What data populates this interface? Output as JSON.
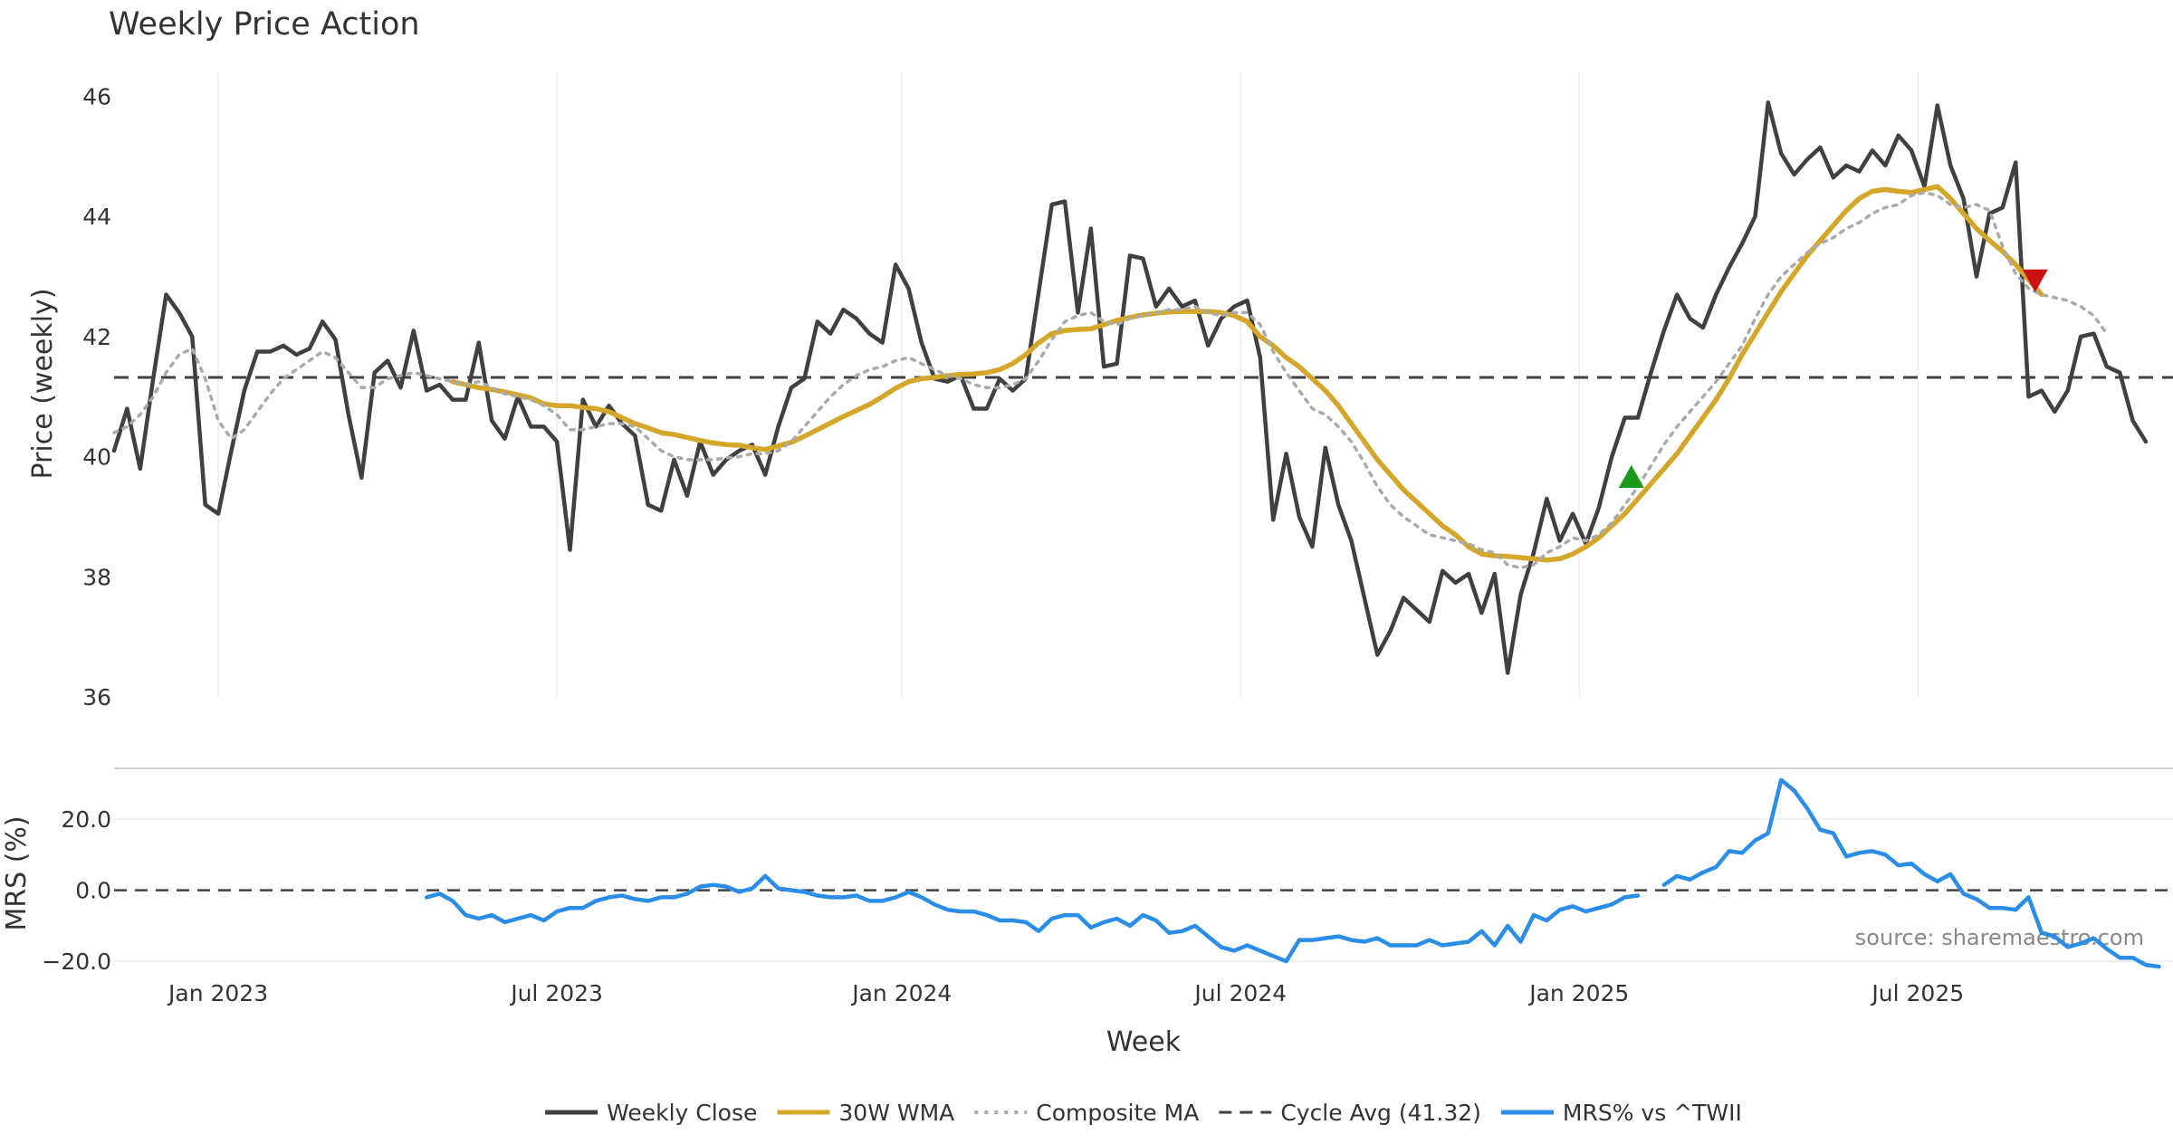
{
  "chart_data": {
    "type": "line",
    "title": "Weekly Price Action",
    "xlabel": "Week",
    "x_ticks": [
      {
        "label": "Jan 2023",
        "week": 8
      },
      {
        "label": "Jul 2023",
        "week": 34
      },
      {
        "label": "Jan 2024",
        "week": 60.5
      },
      {
        "label": "Jul 2024",
        "week": 86.5
      },
      {
        "label": "Jan 2025",
        "week": 112.5
      },
      {
        "label": "Jul 2025",
        "week": 138.5
      }
    ],
    "x_range": [
      0,
      156
    ],
    "source": "source: sharemaestro.com",
    "legend": [
      {
        "key": "close",
        "label": "Weekly Close",
        "style": "solid",
        "color": "#404040"
      },
      {
        "key": "wma",
        "label": "30W WMA",
        "style": "solid",
        "color": "#d4a62a"
      },
      {
        "key": "composite",
        "label": "Composite MA",
        "style": "dotted",
        "color": "#aaaaaa"
      },
      {
        "key": "cycle",
        "label": "Cycle Avg (41.32)",
        "style": "dashed",
        "color": "#404040"
      },
      {
        "key": "mrs",
        "label": "MRS% vs ^TWII",
        "style": "solid",
        "color": "#2a8ee8"
      }
    ],
    "price_panel": {
      "ylabel": "Price (weekly)",
      "ylim": [
        36,
        46.4
      ],
      "yticks": [
        36,
        38,
        40,
        42,
        44,
        46
      ],
      "cycle_avg": 41.32,
      "series": [
        {
          "name": "Weekly Close",
          "start_week": 0,
          "values": [
            40.1,
            40.8,
            39.8,
            41.3,
            42.7,
            42.4,
            42.0,
            39.2,
            39.05,
            40.1,
            41.1,
            41.75,
            41.75,
            41.85,
            41.7,
            41.8,
            42.25,
            41.95,
            40.7,
            39.65,
            41.4,
            41.6,
            41.15,
            42.1,
            41.1,
            41.2,
            40.95,
            40.95,
            41.9,
            40.6,
            40.3,
            41.0,
            40.5,
            40.5,
            40.25,
            38.45,
            40.95,
            40.5,
            40.85,
            40.55,
            40.35,
            39.2,
            39.1,
            39.95,
            39.35,
            40.25,
            39.7,
            39.95,
            40.1,
            40.2,
            39.7,
            40.5,
            41.15,
            41.3,
            42.25,
            42.05,
            42.45,
            42.3,
            42.05,
            41.9,
            43.2,
            42.8,
            41.9,
            41.3,
            41.25,
            41.35,
            40.8,
            40.8,
            41.3,
            41.1,
            41.3,
            42.75,
            44.2,
            44.25,
            42.4,
            43.8,
            41.5,
            41.55,
            43.35,
            43.3,
            42.5,
            42.8,
            42.5,
            42.6,
            41.85,
            42.3,
            42.5,
            42.6,
            41.65,
            38.95,
            40.05,
            39.0,
            38.5,
            40.15,
            39.2,
            38.6,
            37.65,
            36.7,
            37.1,
            37.65,
            37.45,
            37.25,
            38.1,
            37.9,
            38.05,
            37.4,
            38.05,
            36.4,
            37.7,
            38.4,
            39.3,
            38.6,
            39.05,
            38.55,
            39.15,
            40.0,
            40.65,
            40.65,
            41.4,
            42.1,
            42.7,
            42.3,
            42.15,
            42.7,
            43.15,
            43.55,
            44.0,
            45.9,
            45.05,
            44.7,
            44.95,
            45.15,
            44.65,
            44.85,
            44.75,
            45.1,
            44.85,
            45.35,
            45.1,
            44.5,
            45.85,
            44.85,
            44.3,
            43.0,
            44.05,
            44.15,
            44.9,
            41.0,
            41.1,
            40.75,
            41.1,
            42.0,
            42.05,
            41.5,
            41.4,
            40.6,
            40.25
          ]
        },
        {
          "name": "30W WMA",
          "start_week": 26,
          "values": [
            41.25,
            41.2,
            41.15,
            41.12,
            41.08,
            41.03,
            40.98,
            40.88,
            40.85,
            40.85,
            40.82,
            40.8,
            40.75,
            40.65,
            40.55,
            40.48,
            40.4,
            40.37,
            40.32,
            40.27,
            40.23,
            40.2,
            40.19,
            40.15,
            40.12,
            40.18,
            40.24,
            40.34,
            40.45,
            40.56,
            40.67,
            40.77,
            40.87,
            41.0,
            41.14,
            41.25,
            41.3,
            41.32,
            41.35,
            41.37,
            41.38,
            41.4,
            41.45,
            41.55,
            41.7,
            41.9,
            42.05,
            42.1,
            42.12,
            42.13,
            42.2,
            42.27,
            42.32,
            42.36,
            42.39,
            42.41,
            42.42,
            42.42,
            42.42,
            42.4,
            42.35,
            42.25,
            42.0,
            41.85,
            41.65,
            41.5,
            41.3,
            41.1,
            40.85,
            40.55,
            40.25,
            39.95,
            39.7,
            39.45,
            39.25,
            39.05,
            38.85,
            38.7,
            38.5,
            38.38,
            38.35,
            38.34,
            38.32,
            38.3,
            38.28,
            38.3,
            38.38,
            38.5,
            38.65,
            38.85,
            39.05,
            39.3,
            39.55,
            39.8,
            40.05,
            40.35,
            40.65,
            40.95,
            41.3,
            41.7,
            42.05,
            42.4,
            42.75,
            43.05,
            43.35,
            43.6,
            43.85,
            44.1,
            44.3,
            44.42,
            44.45,
            44.42,
            44.4,
            44.45,
            44.5,
            44.3,
            44.05,
            43.8,
            43.6,
            43.42,
            43.2,
            42.95,
            42.7
          ]
        },
        {
          "name": "Composite MA",
          "start_week": 0,
          "values": [
            40.4,
            40.5,
            40.7,
            41.0,
            41.4,
            41.7,
            41.8,
            41.3,
            40.6,
            40.3,
            40.45,
            40.75,
            41.05,
            41.3,
            41.45,
            41.6,
            41.75,
            41.65,
            41.4,
            41.15,
            41.15,
            41.3,
            41.35,
            41.4,
            41.35,
            41.3,
            41.25,
            41.2,
            41.25,
            41.15,
            41.05,
            41.0,
            40.95,
            40.85,
            40.7,
            40.45,
            40.45,
            40.5,
            40.55,
            40.55,
            40.5,
            40.3,
            40.1,
            40.0,
            39.95,
            39.95,
            39.95,
            39.98,
            40.0,
            40.05,
            40.05,
            40.1,
            40.25,
            40.5,
            40.75,
            41.0,
            41.2,
            41.35,
            41.45,
            41.5,
            41.6,
            41.65,
            41.55,
            41.45,
            41.35,
            41.3,
            41.2,
            41.15,
            41.15,
            41.2,
            41.3,
            41.6,
            41.95,
            42.25,
            42.35,
            42.4,
            42.25,
            42.2,
            42.3,
            42.35,
            42.4,
            42.45,
            42.45,
            42.5,
            42.4,
            42.35,
            42.4,
            42.4,
            42.2,
            41.75,
            41.4,
            41.1,
            40.8,
            40.7,
            40.5,
            40.25,
            39.9,
            39.5,
            39.2,
            39.0,
            38.85,
            38.7,
            38.65,
            38.6,
            38.55,
            38.45,
            38.4,
            38.2,
            38.15,
            38.2,
            38.4,
            38.5,
            38.65,
            38.6,
            38.7,
            38.9,
            39.2,
            39.5,
            39.85,
            40.2,
            40.5,
            40.75,
            41.0,
            41.25,
            41.55,
            41.85,
            42.3,
            42.7,
            43.0,
            43.2,
            43.4,
            43.55,
            43.65,
            43.8,
            43.9,
            44.05,
            44.15,
            44.2,
            44.35,
            44.4,
            44.35,
            44.2,
            44.15,
            44.2,
            44.1,
            43.5,
            43.05,
            42.8,
            42.7,
            42.65,
            42.6,
            42.5,
            42.35,
            42.05
          ]
        }
      ],
      "markers": [
        {
          "type": "buy",
          "shape": "triangle-up",
          "week": 116.5,
          "price": 39.65,
          "color": "#1a9a1a"
        },
        {
          "type": "sell",
          "shape": "triangle-down",
          "week": 147.5,
          "price": 42.95,
          "color": "#cc1111"
        }
      ]
    },
    "mrs_panel": {
      "ylabel": "MRS (%)",
      "ylim": [
        -22,
        34
      ],
      "yticks": [
        -20,
        0,
        20
      ],
      "ytick_labels": [
        "−20.0",
        "0.0",
        "20.0"
      ],
      "zero_line": 0,
      "series": [
        {
          "name": "MRS% vs ^TWII",
          "start_week": 24,
          "values": [
            -2,
            -1,
            -3,
            -7,
            -8,
            -7,
            -9,
            -8,
            -7,
            -8.5,
            -6,
            -5,
            -5,
            -3,
            -2,
            -1.5,
            -2.5,
            -3,
            -2,
            -2,
            -1,
            1,
            1.5,
            1,
            -0.5,
            0.5,
            4,
            0.5,
            0,
            -0.5,
            -1.5,
            -2,
            -2,
            -1.5,
            -3,
            -3,
            -2,
            -0.5,
            -2,
            -4,
            -5.5,
            -6,
            -6,
            -7,
            -8.5,
            -8.5,
            -9,
            -11.5,
            -8,
            -7,
            -7,
            -10.5,
            -9,
            -8,
            -10,
            -7,
            -8.5,
            -12,
            -11.5,
            -10,
            -13,
            -16,
            -17,
            -15.5,
            -17,
            -18.5,
            -20,
            -14,
            -14,
            -13.5,
            -13,
            -14,
            -14.5,
            -13.5,
            -15.5,
            -15.5,
            -15.5,
            -14,
            -15.5,
            -15,
            -14.5,
            -11.5,
            -15.5,
            -10,
            -14.5,
            -7,
            -8.5,
            -5.5,
            -4.5,
            -6,
            -5,
            -4,
            -2,
            -1.5,
            null,
            1.5,
            4,
            3,
            5,
            6.5,
            11,
            10.5,
            14,
            16,
            31,
            28,
            23,
            17,
            16,
            9.5,
            10.5,
            11,
            10,
            7,
            7.5,
            4.5,
            2.5,
            4.5,
            -1,
            -2.5,
            -5,
            -5,
            -5.5,
            -2,
            -12,
            -13,
            -16,
            -15,
            -13.5,
            -16.5,
            -19,
            -19,
            -21,
            -21.5
          ]
        }
      ]
    }
  }
}
